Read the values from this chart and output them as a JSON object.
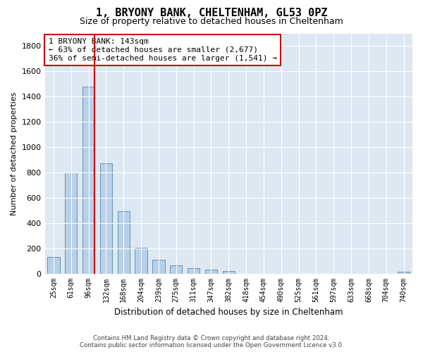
{
  "title": "1, BRYONY BANK, CHELTENHAM, GL53 0PZ",
  "subtitle": "Size of property relative to detached houses in Cheltenham",
  "xlabel": "Distribution of detached houses by size in Cheltenham",
  "ylabel": "Number of detached properties",
  "footer_line1": "Contains HM Land Registry data © Crown copyright and database right 2024.",
  "footer_line2": "Contains public sector information licensed under the Open Government Licence v3.0.",
  "categories": [
    "25sqm",
    "61sqm",
    "96sqm",
    "132sqm",
    "168sqm",
    "204sqm",
    "239sqm",
    "275sqm",
    "311sqm",
    "347sqm",
    "382sqm",
    "418sqm",
    "454sqm",
    "490sqm",
    "525sqm",
    "561sqm",
    "597sqm",
    "633sqm",
    "668sqm",
    "704sqm",
    "740sqm"
  ],
  "values": [
    130,
    800,
    1480,
    870,
    495,
    205,
    110,
    65,
    42,
    32,
    22,
    0,
    0,
    0,
    0,
    0,
    0,
    0,
    0,
    0,
    15
  ],
  "bar_color": "#b8d0e8",
  "bar_edge_color": "#5588aa",
  "vline_x_idx": 2,
  "vline_color": "#cc0000",
  "annotation_title": "1 BRYONY BANK: 143sqm",
  "annotation_line1": "← 63% of detached houses are smaller (2,677)",
  "annotation_line2": "36% of semi-detached houses are larger (1,541) →",
  "annotation_box_color": "#cc0000",
  "ylim": [
    0,
    1900
  ],
  "yticks": [
    0,
    200,
    400,
    600,
    800,
    1000,
    1200,
    1400,
    1600,
    1800
  ],
  "plot_bg_color": "#dde8f3",
  "title_fontsize": 11,
  "subtitle_fontsize": 9,
  "bar_width": 0.7
}
